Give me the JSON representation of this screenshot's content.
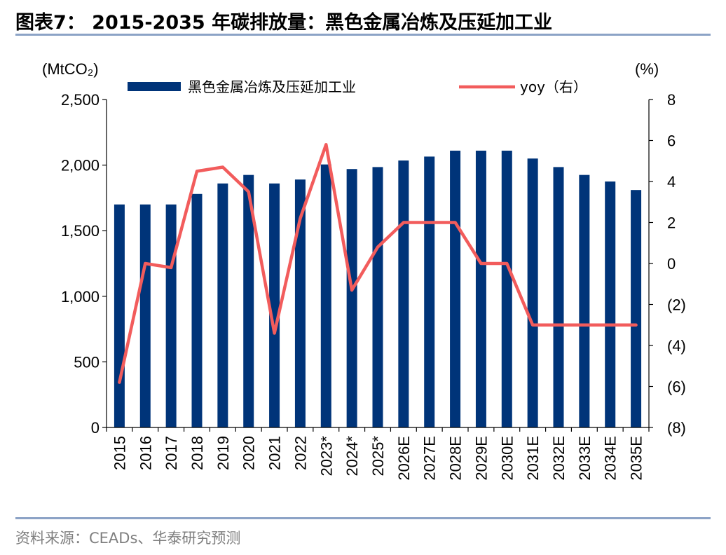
{
  "header": {
    "title": "图表7：  2015-2035 年碳排放量：黑色金属冶炼及压延加工业"
  },
  "footer": {
    "source": "资料来源：CEADs、华泰研究预测"
  },
  "colors": {
    "bar": "#003479",
    "line": "#F25C5C",
    "rule": "#8CA3C6"
  },
  "chart_data": {
    "type": "bar",
    "categories": [
      "2015",
      "2016",
      "2017",
      "2018",
      "2019",
      "2020",
      "2021",
      "2022",
      "2023*",
      "2024*",
      "2025*",
      "2026E",
      "2027E",
      "2028E",
      "2029E",
      "2030E",
      "2031E",
      "2032E",
      "2033E",
      "2034E",
      "2035E"
    ],
    "series": [
      {
        "name": "黑色金属冶炼及压延加工业",
        "type": "bar",
        "axis": "left",
        "values": [
          1700,
          1700,
          1700,
          1780,
          1860,
          1925,
          1860,
          1890,
          2005,
          1970,
          1985,
          2035,
          2065,
          2110,
          2110,
          2110,
          2050,
          1985,
          1925,
          1875,
          1810
        ]
      },
      {
        "name": "yoy（右）",
        "type": "line",
        "axis": "right",
        "values": [
          -5.8,
          0.0,
          -0.2,
          4.5,
          4.7,
          3.5,
          -3.4,
          2.2,
          5.8,
          -1.3,
          0.8,
          2.0,
          2.0,
          2.0,
          0.0,
          0.0,
          -3.0,
          -3.0,
          -3.0,
          -3.0,
          -3.0
        ]
      }
    ],
    "left_axis": {
      "unit": "(MtCO₂)",
      "range": [
        0,
        2500
      ],
      "ticks": [
        0,
        500,
        1000,
        1500,
        2000,
        2500
      ],
      "tick_labels": [
        "0",
        "500",
        "1,000",
        "1,500",
        "2,000",
        "2,500"
      ]
    },
    "right_axis": {
      "unit": "(%)",
      "range": [
        -8,
        8
      ],
      "ticks": [
        -8,
        -6,
        -4,
        -2,
        0,
        2,
        4,
        6,
        8
      ],
      "tick_labels": [
        "(8)",
        "(6)",
        "(4)",
        "(2)",
        "0",
        "2",
        "4",
        "6",
        "8"
      ]
    },
    "legend": {
      "position": "top"
    },
    "grid": false
  }
}
